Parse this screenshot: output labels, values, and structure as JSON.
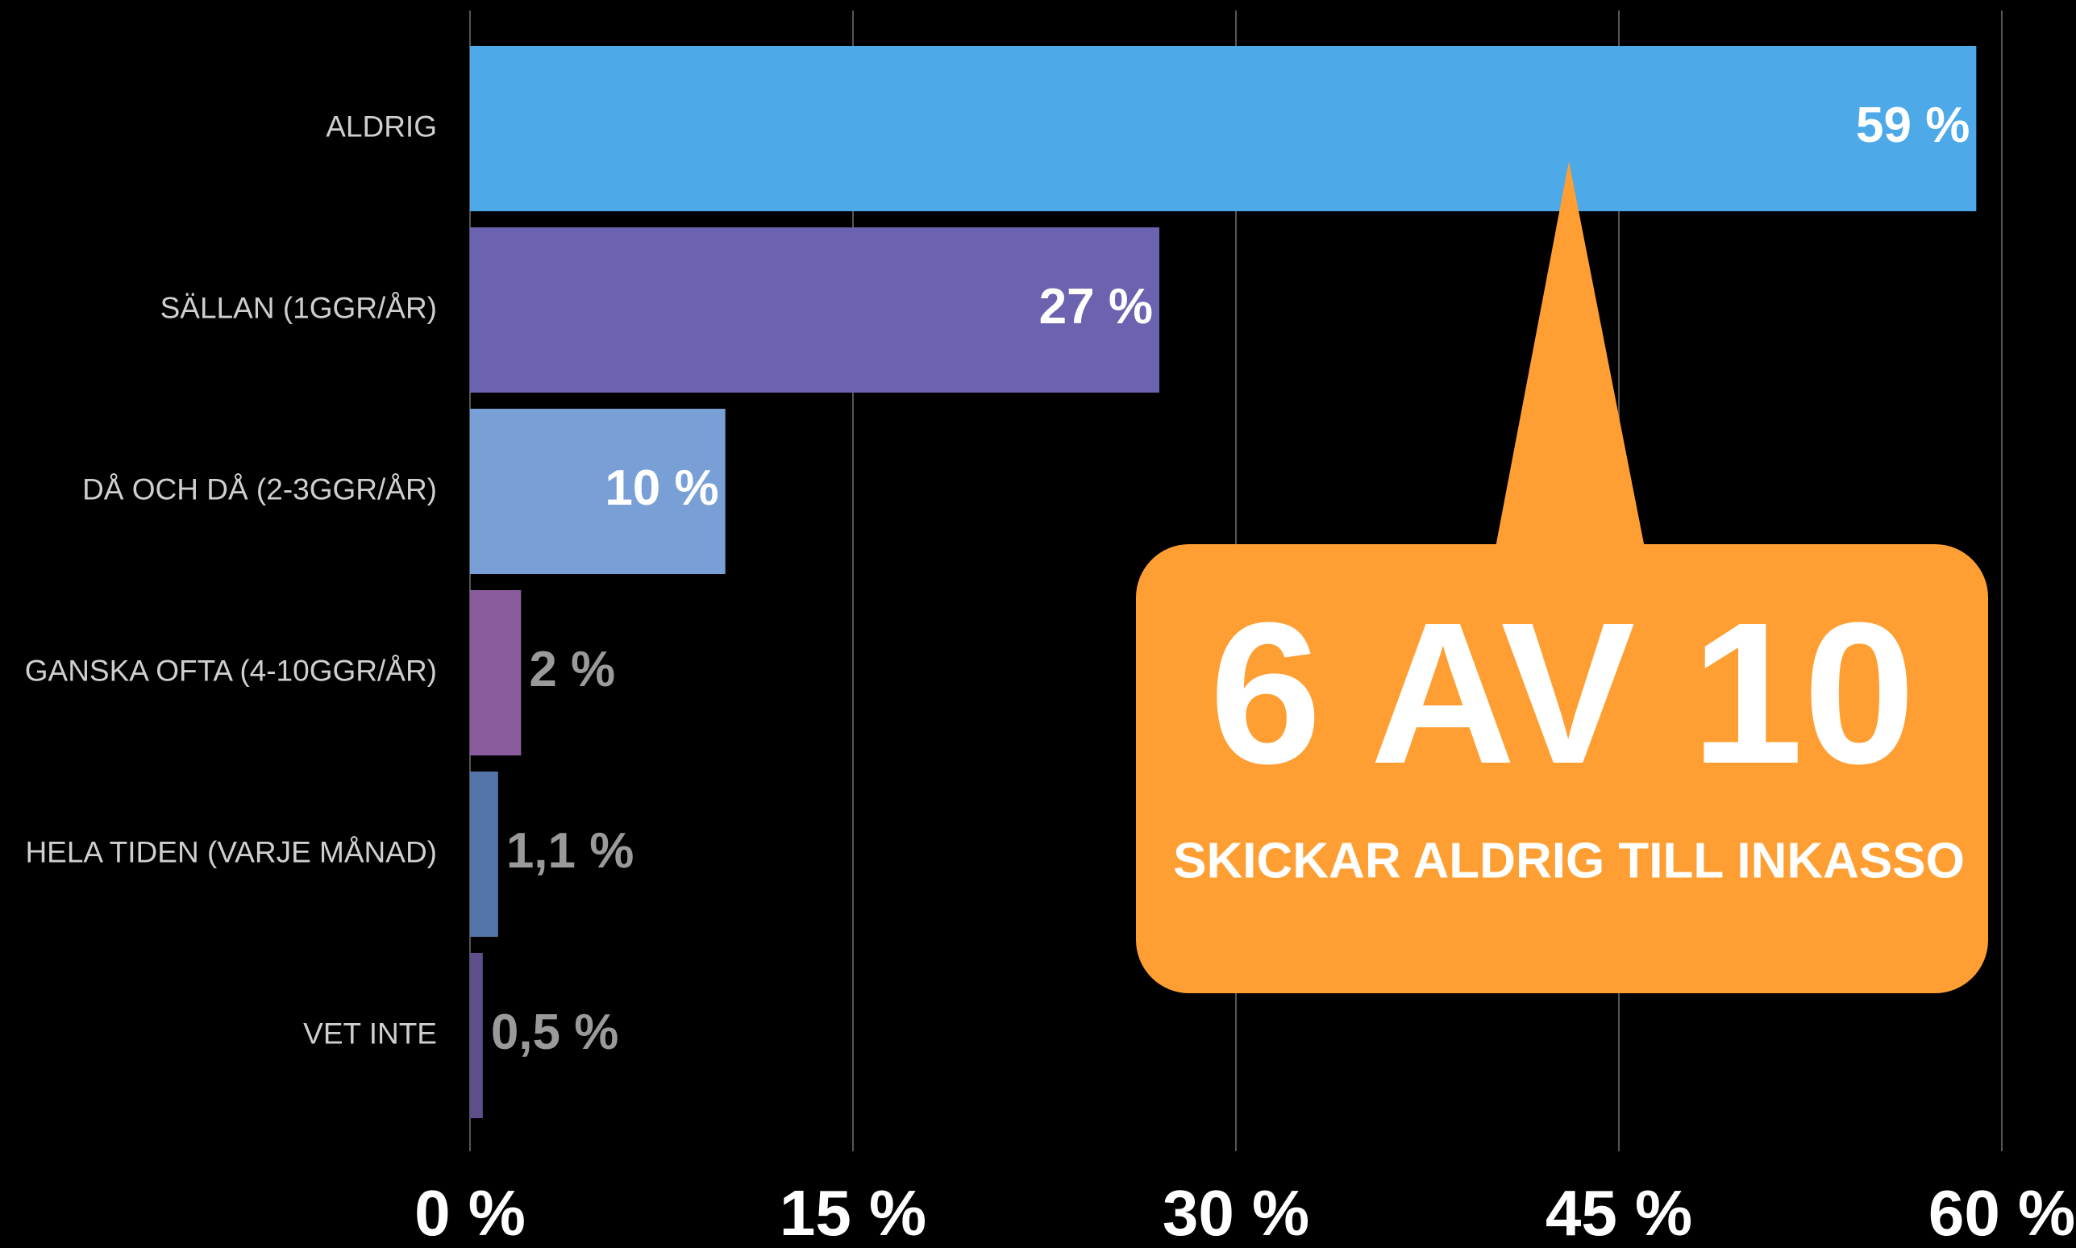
{
  "chart_data": {
    "type": "bar",
    "orientation": "horizontal",
    "categories": [
      "ALDRIG",
      "SÄLLAN (1GGR/ÅR)",
      "DÅ OCH DÅ (2-3GGR/ÅR)",
      "GANSKA OFTA (4-10GGR/ÅR)",
      "HELA TIDEN (VARJE MÅNAD)",
      "VET INTE"
    ],
    "values": [
      59,
      27,
      10,
      2,
      1.1,
      0.5
    ],
    "value_labels": [
      "59 %",
      "27 %",
      "10 %",
      "2 %",
      "1,1 %",
      "0,5 %"
    ],
    "colors": [
      "#4da9e8",
      "#6b62b0",
      "#79a0d6",
      "#8a5c9e",
      "#5575a8",
      "#5e4e8a"
    ],
    "xlim": [
      0,
      60
    ],
    "xticks": [
      {
        "value": 0,
        "label": "0 %"
      },
      {
        "value": 15,
        "label": "15 %"
      },
      {
        "value": 30,
        "label": "30 %"
      },
      {
        "value": 45,
        "label": "45 %"
      },
      {
        "value": 60,
        "label": "60 %"
      }
    ],
    "grid": true,
    "annotation": {
      "headline": "6 AV 10",
      "text": "SKICKAR ALDRIG TILL INKASSO",
      "color": "#ff9f33"
    }
  }
}
